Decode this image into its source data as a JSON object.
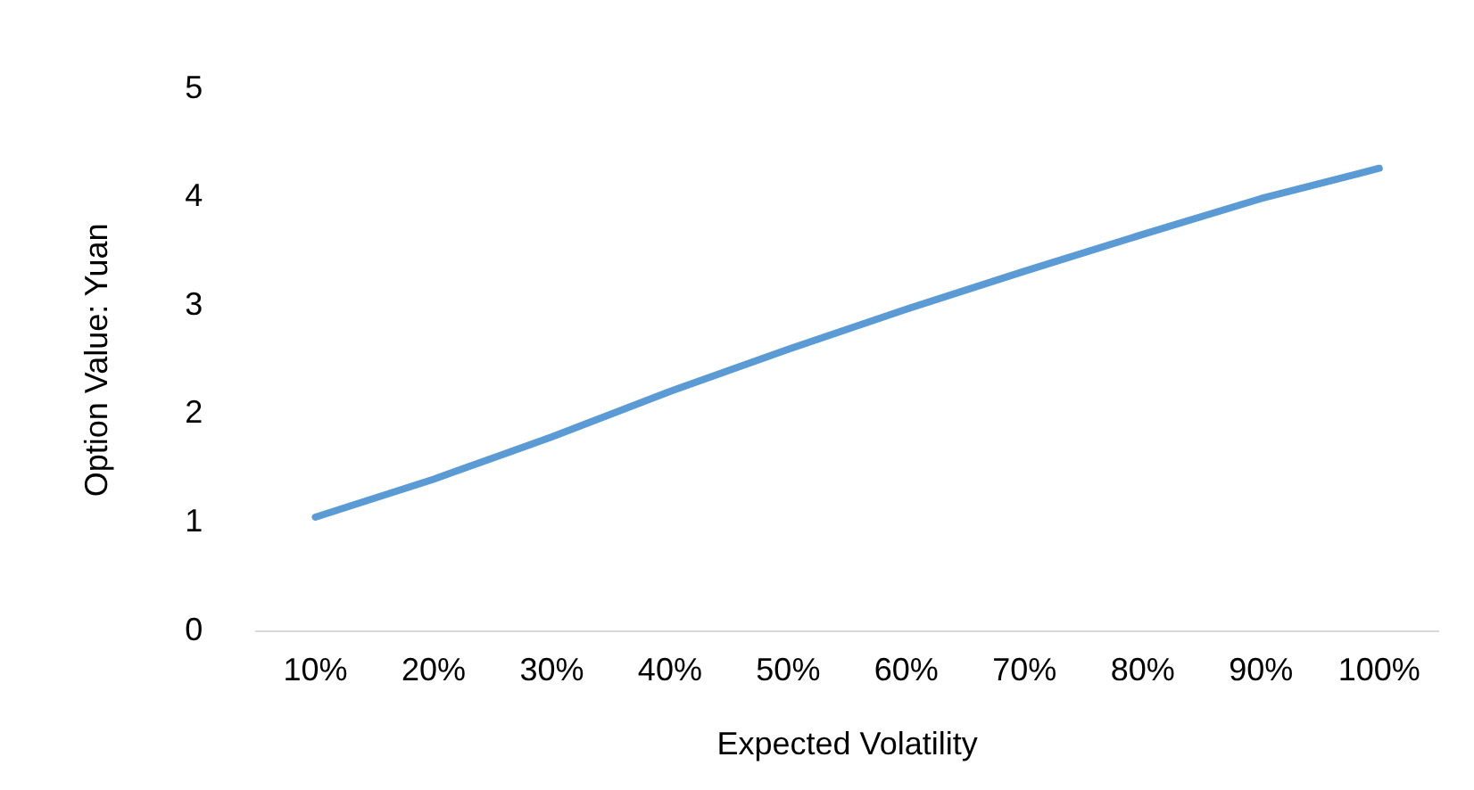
{
  "chart_data": {
    "type": "line",
    "xlabel": "Expected Volatility",
    "ylabel": "Option Value: Yuan",
    "categories": [
      "10%",
      "20%",
      "30%",
      "40%",
      "50%",
      "60%",
      "70%",
      "80%",
      "90%",
      "100%"
    ],
    "series": [
      {
        "color": "#5b9bd5",
        "values": [
          1.05,
          1.4,
          1.79,
          2.21,
          2.6,
          2.97,
          3.32,
          3.66,
          3.99,
          4.27
        ]
      }
    ],
    "ylim": [
      0,
      5
    ],
    "yticks": [
      0,
      1,
      2,
      3,
      4,
      5
    ],
    "grid": false,
    "legend": false,
    "marker": "none",
    "line_style": "solid"
  }
}
